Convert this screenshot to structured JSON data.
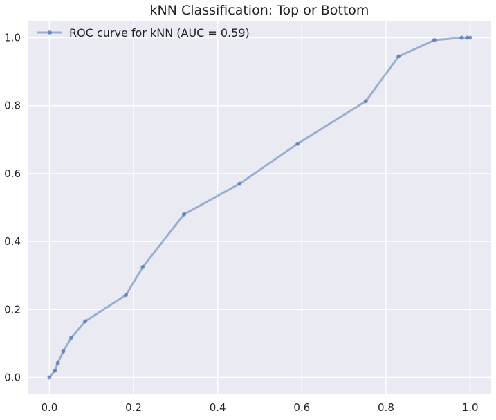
{
  "chart_data": {
    "type": "line",
    "title": "kNN Classification: Top or Bottom",
    "xlabel": "",
    "ylabel": "",
    "xlim": [
      -0.05,
      1.05
    ],
    "ylim": [
      -0.05,
      1.05
    ],
    "xticks": [
      0.0,
      0.2,
      0.4,
      0.6,
      0.8,
      1.0
    ],
    "yticks": [
      0.0,
      0.2,
      0.4,
      0.6,
      0.8,
      1.0
    ],
    "xtick_labels": [
      "0.0",
      "0.2",
      "0.4",
      "0.6",
      "0.8",
      "1.0"
    ],
    "ytick_labels": [
      "0.0",
      "0.2",
      "0.4",
      "0.6",
      "0.8",
      "1.0"
    ],
    "grid": true,
    "legend_position": "top-left",
    "colors": {
      "plot_background": "#eaeaf2",
      "grid": "#ffffff",
      "series": "#4c72b0",
      "text": "#222222"
    },
    "series": [
      {
        "name": "ROC curve for kNN (AUC = 0.59)",
        "x": [
          0.0,
          0.013,
          0.02,
          0.033,
          0.052,
          0.085,
          0.182,
          0.222,
          0.32,
          0.452,
          0.59,
          0.752,
          0.83,
          0.915,
          0.98,
          0.993,
          1.0
        ],
        "y": [
          0.0,
          0.02,
          0.042,
          0.077,
          0.117,
          0.165,
          0.243,
          0.325,
          0.48,
          0.57,
          0.688,
          0.813,
          0.945,
          0.993,
          1.0,
          1.0,
          1.0
        ]
      }
    ]
  }
}
